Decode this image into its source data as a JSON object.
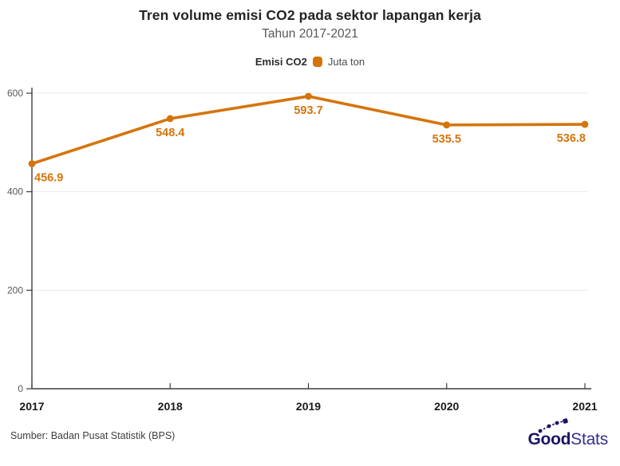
{
  "chart_data": {
    "type": "line",
    "title": "Tren volume emisi CO2 pada sektor lapangan kerja",
    "subtitle": "Tahun 2017-2021",
    "x": [
      "2017",
      "2018",
      "2019",
      "2020",
      "2021"
    ],
    "series": [
      {
        "name": "Emisi CO2",
        "unit": "Juta ton",
        "values": [
          456.9,
          548.4,
          593.7,
          535.5,
          536.8
        ]
      }
    ],
    "xlabel": "",
    "ylabel": "",
    "ylim": [
      0,
      600
    ],
    "yticks": [
      0,
      200,
      400,
      600
    ],
    "grid": true,
    "legend_position": "top",
    "line_color": "#D4750C",
    "data_label_color": "#D4750C",
    "grid_color": "#E9E9E9",
    "axis_color": "#3D3D3D",
    "xtick_color": "#1A1A1A",
    "ytick_color": "#595959"
  },
  "legend": {
    "label": "Emisi CO2",
    "series_name": "Juta ton",
    "swatch_color": "#D4750C"
  },
  "footer": {
    "source": "Sumber: Badan Pusat Statistik (BPS)",
    "logo": {
      "bold": "Good",
      "light": "Stats",
      "color": "#1B1464"
    }
  }
}
